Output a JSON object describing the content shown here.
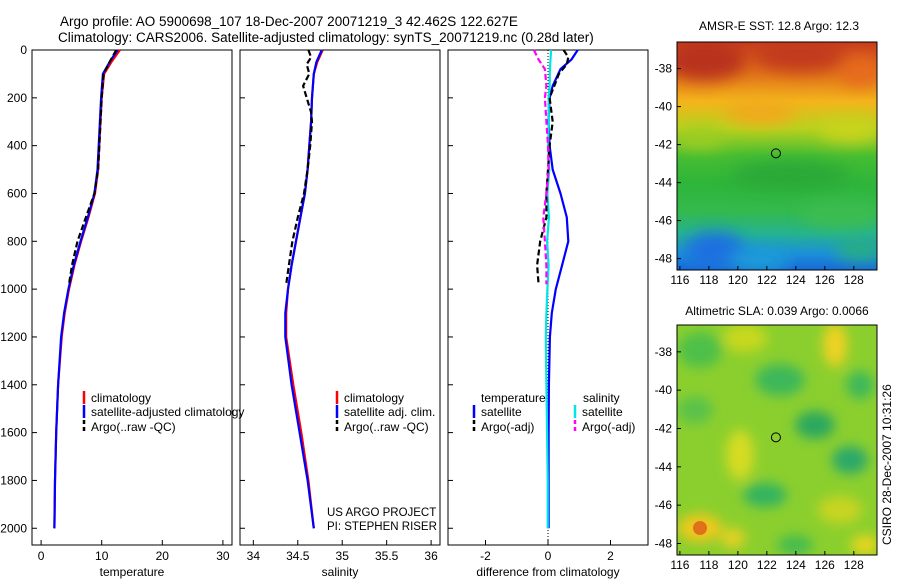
{
  "header": {
    "title_line1": "Argo profile: AO 5900698_107 18-Dec-2007 20071219_3 42.462S 122.627E",
    "title_line2": "Climatology: CARS2006. Satellite-adjusted climatology: synTS_20071219.nc (0.28d later)"
  },
  "side_stamp": "CSIRO 28-Dec-2007 10:31:26",
  "project_note": [
    "US ARGO PROJECT",
    "PI: STEPHEN RISER"
  ],
  "colors": {
    "climatology": "#ff0000",
    "satellite": "#0000ff",
    "argo": "#000000",
    "sat_salinity": "#00e5e5",
    "argo_salinity": "#ff00ff"
  },
  "chart_data": [
    {
      "id": "temperature",
      "type": "line",
      "xlabel": "temperature",
      "ylabel": "",
      "xlim": [
        -1.5,
        31.5
      ],
      "ylim": [
        2070,
        0
      ],
      "xticks": [
        0,
        10,
        20,
        30
      ],
      "yticks": [
        0,
        200,
        400,
        600,
        800,
        1000,
        1200,
        1400,
        1600,
        1800,
        2000
      ],
      "y": [
        0,
        50,
        100,
        200,
        300,
        400,
        500,
        600,
        700,
        800,
        900,
        1000,
        1100,
        1200,
        1400,
        1600,
        1800,
        2000
      ],
      "series": [
        {
          "name": "climatology",
          "color": "#ff0000",
          "values": [
            13.0,
            11.6,
            10.4,
            10.0,
            9.8,
            9.6,
            9.4,
            8.9,
            7.8,
            6.6,
            5.5,
            4.6,
            3.9,
            3.4,
            2.8,
            2.5,
            2.3,
            2.2
          ]
        },
        {
          "name": "satellite-adjusted climatology",
          "color": "#0000ff",
          "values": [
            12.6,
            11.3,
            10.2,
            9.9,
            9.7,
            9.5,
            9.3,
            8.8,
            7.7,
            6.5,
            5.4,
            4.5,
            3.8,
            3.3,
            2.8,
            2.5,
            2.3,
            2.2
          ]
        },
        {
          "name": "Argo(..raw -QC)",
          "color": "#000000",
          "dashed": true,
          "y": [
            0,
            50,
            100,
            200,
            300,
            400,
            500,
            600,
            700,
            800,
            900,
            980
          ],
          "values": [
            12.4,
            11.3,
            10.3,
            10.0,
            9.8,
            9.6,
            9.4,
            8.8,
            7.4,
            6.0,
            5.1,
            4.6
          ]
        }
      ],
      "legend": [
        "climatology",
        "satellite-adjusted climatology",
        "Argo(..raw -QC)"
      ]
    },
    {
      "id": "salinity",
      "type": "line",
      "xlabel": "salinity",
      "ylabel": "",
      "xlim": [
        33.85,
        36.1
      ],
      "ylim": [
        2070,
        0
      ],
      "xticks": [
        34,
        34.5,
        35,
        35.5,
        36
      ],
      "xticklabels": [
        "34",
        "34.5",
        "35",
        "35.5",
        "36"
      ],
      "y": [
        0,
        50,
        100,
        200,
        300,
        400,
        500,
        600,
        700,
        800,
        900,
        1000,
        1100,
        1200,
        1400,
        1600,
        1800,
        2000
      ],
      "series": [
        {
          "name": "climatology",
          "color": "#ff0000",
          "values": [
            34.78,
            34.72,
            34.68,
            34.66,
            34.65,
            34.63,
            34.61,
            34.58,
            34.53,
            34.48,
            34.43,
            34.39,
            34.37,
            34.37,
            34.45,
            34.54,
            34.62,
            34.68
          ]
        },
        {
          "name": "satellite adj. clim.",
          "color": "#0000ff",
          "values": [
            34.77,
            34.71,
            34.68,
            34.66,
            34.65,
            34.63,
            34.61,
            34.58,
            34.53,
            34.48,
            34.43,
            34.39,
            34.36,
            34.36,
            34.43,
            34.52,
            34.61,
            34.68
          ]
        },
        {
          "name": "Argo(..raw -QC)",
          "color": "#000000",
          "dashed": true,
          "y": [
            0,
            30,
            60,
            100,
            150,
            200,
            260,
            300,
            400,
            500,
            600,
            700,
            800,
            900,
            980
          ],
          "values": [
            34.62,
            34.65,
            34.6,
            34.63,
            34.56,
            34.6,
            34.65,
            34.66,
            34.64,
            34.61,
            34.57,
            34.5,
            34.44,
            34.4,
            34.37
          ]
        }
      ],
      "legend": [
        "climatology",
        "satellite adj. clim.",
        "Argo(..raw -QC)"
      ]
    },
    {
      "id": "difference",
      "type": "line",
      "xlabel": "difference from climatology",
      "ylabel": "",
      "xlim": [
        -3.2,
        3.2
      ],
      "ylim": [
        2070,
        0
      ],
      "xticks": [
        -2,
        0,
        2
      ],
      "y": [
        0,
        40,
        80,
        150,
        200,
        300,
        400,
        500,
        600,
        700,
        800,
        900,
        1000,
        1100,
        1200,
        1400,
        1600,
        1800,
        2000
      ],
      "series": [
        {
          "name": "temperature satellite",
          "color": "#0000ff",
          "values": [
            0.95,
            0.75,
            0.4,
            0.15,
            0.05,
            0.02,
            0.05,
            0.15,
            0.4,
            0.6,
            0.65,
            0.45,
            0.25,
            0.12,
            0.06,
            0.03,
            0.02,
            0.02,
            0.02
          ]
        },
        {
          "name": "salinity satellite",
          "color": "#00e5e5",
          "values": [
            0.1,
            0.08,
            0.06,
            0.05,
            0.02,
            0.03,
            0.0,
            0.04,
            -0.02,
            0.03,
            -0.03,
            0.02,
            -0.02,
            -0.05,
            -0.07,
            -0.05,
            -0.03,
            -0.01,
            -0.01
          ]
        },
        {
          "name": "temperature Argo(-adj)",
          "color": "#000000",
          "dashed": true,
          "y": [
            0,
            30,
            60,
            100,
            150,
            200,
            300,
            400,
            500,
            600,
            700,
            800,
            900,
            980
          ],
          "values": [
            0.5,
            0.65,
            0.6,
            0.35,
            0.2,
            0.05,
            0.15,
            0.05,
            0.0,
            -0.05,
            -0.05,
            -0.25,
            -0.35,
            -0.3
          ]
        },
        {
          "name": "salinity Argo(-adj)",
          "color": "#ff00ff",
          "dashed": true,
          "y": [
            0,
            40,
            80,
            150,
            200,
            300,
            400,
            500,
            600,
            700,
            800,
            900,
            980
          ],
          "values": [
            -0.45,
            -0.3,
            -0.1,
            -0.05,
            -0.1,
            -0.05,
            0.0,
            0.02,
            -0.05,
            -0.15,
            -0.1,
            -0.05,
            -0.05
          ]
        }
      ],
      "legend_headers": [
        "temperature",
        "salinity"
      ],
      "legend": [
        "satellite",
        "Argo(-adj)",
        "satellite",
        "Argo(-adj)"
      ]
    },
    {
      "id": "sst_map",
      "type": "heatmap",
      "title": "AMSR-E SST: 12.8 Argo: 12.3",
      "xlim": [
        115.8,
        129.6
      ],
      "ylim": [
        -48.6,
        -36.6
      ],
      "xticks": [
        116,
        118,
        120,
        122,
        124,
        126,
        128
      ],
      "yticks": [
        -38,
        -40,
        -42,
        -44,
        -46,
        -48
      ],
      "marker": {
        "lon": 122.627,
        "lat": -42.462
      }
    },
    {
      "id": "sla_map",
      "type": "heatmap",
      "title": "Altimetric SLA: 0.039 Argo: 0.0066",
      "xlim": [
        115.8,
        129.6
      ],
      "ylim": [
        -48.6,
        -36.6
      ],
      "xticks": [
        116,
        118,
        120,
        122,
        124,
        126,
        128
      ],
      "yticks": [
        -38,
        -40,
        -42,
        -44,
        -46,
        -48
      ],
      "marker": {
        "lon": 122.627,
        "lat": -42.462
      }
    }
  ]
}
